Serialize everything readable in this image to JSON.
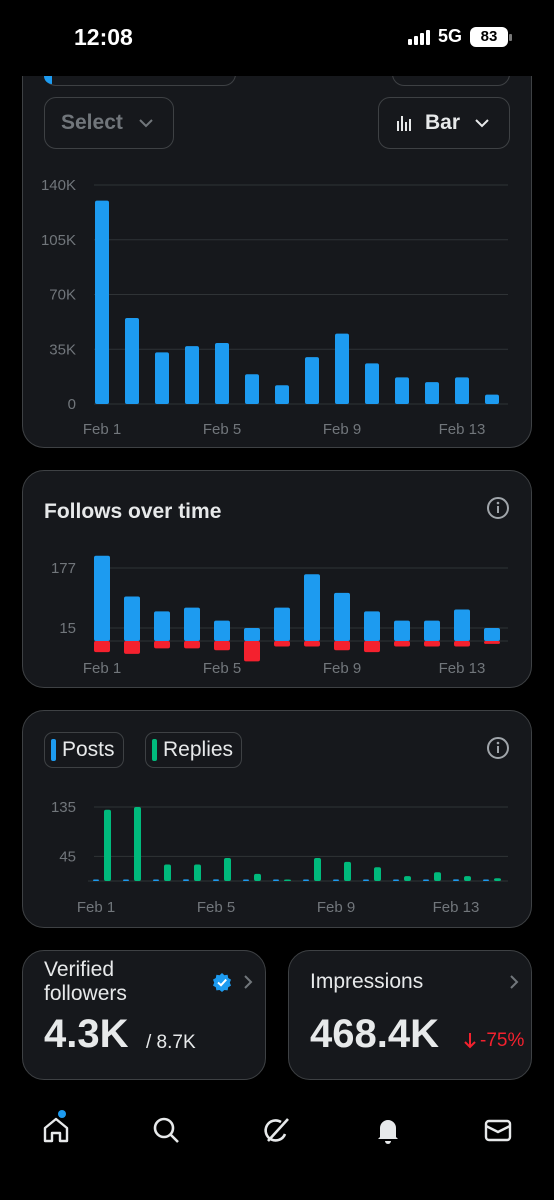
{
  "status": {
    "time": "12:08",
    "network": "5G",
    "battery": "83"
  },
  "controls": {
    "select_label": "Select",
    "chart_type_label": "Bar"
  },
  "colors": {
    "blue": "#1d9bf0",
    "green": "#00ba7c",
    "red": "#f4212e",
    "card": "#16181c",
    "border": "#3e4144"
  },
  "chart_data": [
    {
      "type": "bar",
      "categories": [
        "Feb 1",
        "Feb 2",
        "Feb 3",
        "Feb 4",
        "Feb 5",
        "Feb 6",
        "Feb 7",
        "Feb 8",
        "Feb 9",
        "Feb 10",
        "Feb 11",
        "Feb 12",
        "Feb 13",
        "Feb 14"
      ],
      "x_tick_labels": [
        "Feb 1",
        "Feb 5",
        "Feb 9",
        "Feb 13"
      ],
      "y_tick_labels": [
        "140K",
        "105K",
        "70K",
        "35K",
        "0"
      ],
      "ylim": [
        0,
        140000
      ],
      "values": [
        130000,
        55000,
        33000,
        37000,
        39000,
        19000,
        12000,
        30000,
        45000,
        26000,
        17000,
        14000,
        17000,
        6000
      ],
      "grid": true
    },
    {
      "type": "bar",
      "title": "Follows over time",
      "categories": [
        "Feb 1",
        "Feb 2",
        "Feb 3",
        "Feb 4",
        "Feb 5",
        "Feb 6",
        "Feb 7",
        "Feb 8",
        "Feb 9",
        "Feb 10",
        "Feb 11",
        "Feb 12",
        "Feb 13",
        "Feb 14"
      ],
      "x_tick_labels": [
        "Feb 1",
        "Feb 5",
        "Feb 9",
        "Feb 13"
      ],
      "y_tick_labels": [
        "177",
        "15"
      ],
      "series": [
        {
          "values": [
            210,
            100,
            60,
            70,
            35,
            15,
            70,
            160,
            110,
            60,
            35,
            35,
            65,
            15
          ]
        },
        {
          "values": [
            -30,
            -35,
            -20,
            -20,
            -25,
            -55,
            -15,
            -15,
            -25,
            -30,
            -15,
            -15,
            -15,
            -8
          ]
        }
      ],
      "grid": true
    },
    {
      "type": "bar",
      "categories": [
        "Feb 1",
        "Feb 2",
        "Feb 3",
        "Feb 4",
        "Feb 5",
        "Feb 6",
        "Feb 7",
        "Feb 8",
        "Feb 9",
        "Feb 10",
        "Feb 11",
        "Feb 12",
        "Feb 13",
        "Feb 14"
      ],
      "x_tick_labels": [
        "Feb 1",
        "Feb 5",
        "Feb 9",
        "Feb 13"
      ],
      "y_tick_labels": [
        "135",
        "45"
      ],
      "series": [
        {
          "name": "Posts",
          "values": [
            1,
            1,
            1,
            3,
            3,
            1,
            1,
            1,
            1,
            1,
            0,
            1,
            3,
            0
          ]
        },
        {
          "name": "Replies",
          "values": [
            130,
            135,
            30,
            30,
            42,
            13,
            0,
            42,
            35,
            25,
            9,
            16,
            9,
            5
          ]
        }
      ],
      "grid": true
    }
  ],
  "legend": {
    "posts": "Posts",
    "replies": "Replies"
  },
  "stats": {
    "verified_followers": {
      "label": "Verified followers",
      "value": "4.3K",
      "total": "/ 8.7K"
    },
    "impressions": {
      "label": "Impressions",
      "value": "468.4K",
      "change": "-75%"
    }
  },
  "nav": [
    "home-icon",
    "search-icon",
    "grok-icon",
    "notifications-icon",
    "messages-icon"
  ]
}
